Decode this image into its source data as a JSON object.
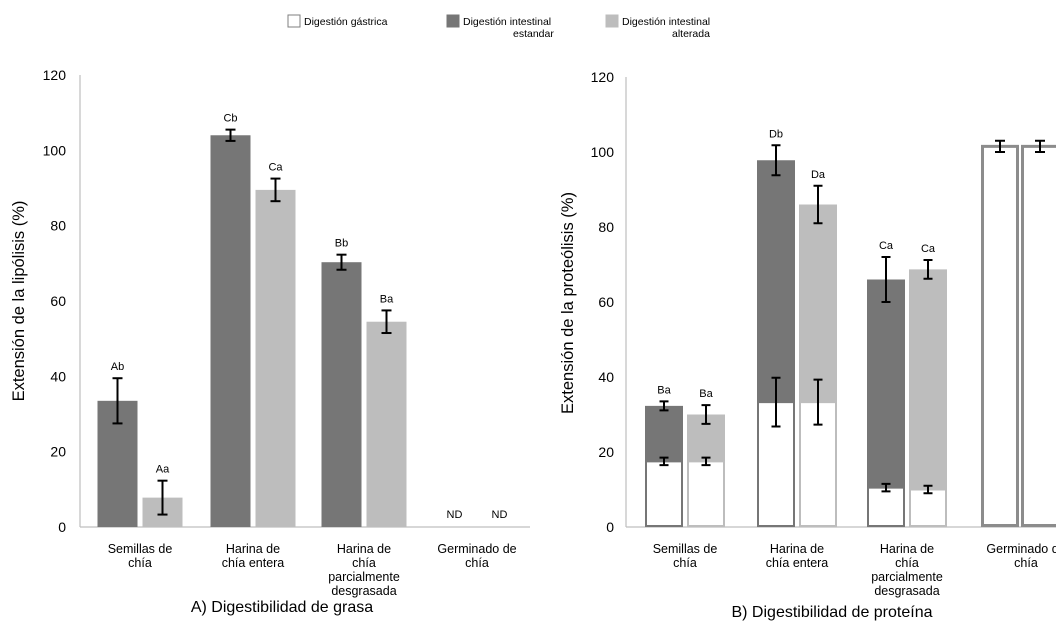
{
  "legend": [
    {
      "label": "Digestión gástrica",
      "color": "#ffffff",
      "stroke": "#7f7f7f"
    },
    {
      "label": "Digestión intestinal estandar",
      "color": "#767676",
      "stroke": "#767676"
    },
    {
      "label": "Digestión intestinal alterada",
      "color": "#bdbdbd",
      "stroke": "#bdbdbd"
    }
  ],
  "chart_data": [
    {
      "type": "bar",
      "title": "A) Digestibilidad de grasa",
      "ylabel": "Extensión de la lipólisis (%)",
      "ylim": [
        0,
        120
      ],
      "yticks": [
        0,
        20,
        40,
        60,
        80,
        100,
        120
      ],
      "categories": [
        "Semillas de chía",
        "Harina de chía entera",
        "Harina de chía parcialmente desgrasada",
        "Germinado de chía"
      ],
      "series": [
        {
          "name": "Digestión intestinal estandar",
          "values": [
            33.5,
            104,
            70.3,
            0
          ],
          "errors": [
            6,
            1.5,
            2,
            0
          ],
          "labels": [
            "Ab",
            "Cb",
            "Bb",
            "ND"
          ]
        },
        {
          "name": "Digestión intestinal alterada",
          "values": [
            7.8,
            89.5,
            54.5,
            0
          ],
          "errors": [
            4.5,
            3,
            3,
            0
          ],
          "labels": [
            "Aa",
            "Ca",
            "Ba",
            "ND"
          ]
        }
      ]
    },
    {
      "type": "bar",
      "stacked": true,
      "title": "B) Digestibilidad de proteína",
      "ylabel": "Extensión de la proteólisis (%)",
      "ylim": [
        0,
        120
      ],
      "yticks": [
        0,
        20,
        40,
        60,
        80,
        100,
        120
      ],
      "categories": [
        "Semillas de chía",
        "Harina de chía entera",
        "Harina de chía parcialmente desgrasada",
        "Germinado de chía"
      ],
      "bars": [
        {
          "name": "Digestión intestinal estandar",
          "gastric": 17.5,
          "gastric_error": 1,
          "total": 32.3,
          "total_error": 1.2,
          "label": "Ba"
        },
        {
          "name": "Digestión intestinal alterada",
          "gastric": 17.5,
          "gastric_error": 1,
          "total": 30,
          "total_error": 2.5,
          "label": "Ba"
        },
        {
          "name": "Digestión intestinal estandar",
          "gastric": 33.3,
          "gastric_error": 6.5,
          "total": 97.8,
          "total_error": 4,
          "label": "Db"
        },
        {
          "name": "Digestión intestinal alterada",
          "gastric": 33.3,
          "gastric_error": 6,
          "total": 86,
          "total_error": 5,
          "label": "Da"
        },
        {
          "name": "Digestión intestinal estandar",
          "gastric": 10.5,
          "gastric_error": 1,
          "total": 66,
          "total_error": 6,
          "label": "Ca"
        },
        {
          "name": "Digestión intestinal alterada",
          "gastric": 10,
          "gastric_error": 1,
          "total": 68.7,
          "total_error": 2.5,
          "label": "Ca"
        },
        {
          "name": "Digestión gástrica",
          "gastric": 101.5,
          "gastric_error": 1.5,
          "total": 101.5,
          "total_error": 0,
          "label": ""
        },
        {
          "name": "Digestión gástrica",
          "gastric": 101.5,
          "gastric_error": 1.5,
          "total": 101.5,
          "total_error": 0,
          "label": ""
        }
      ]
    }
  ]
}
